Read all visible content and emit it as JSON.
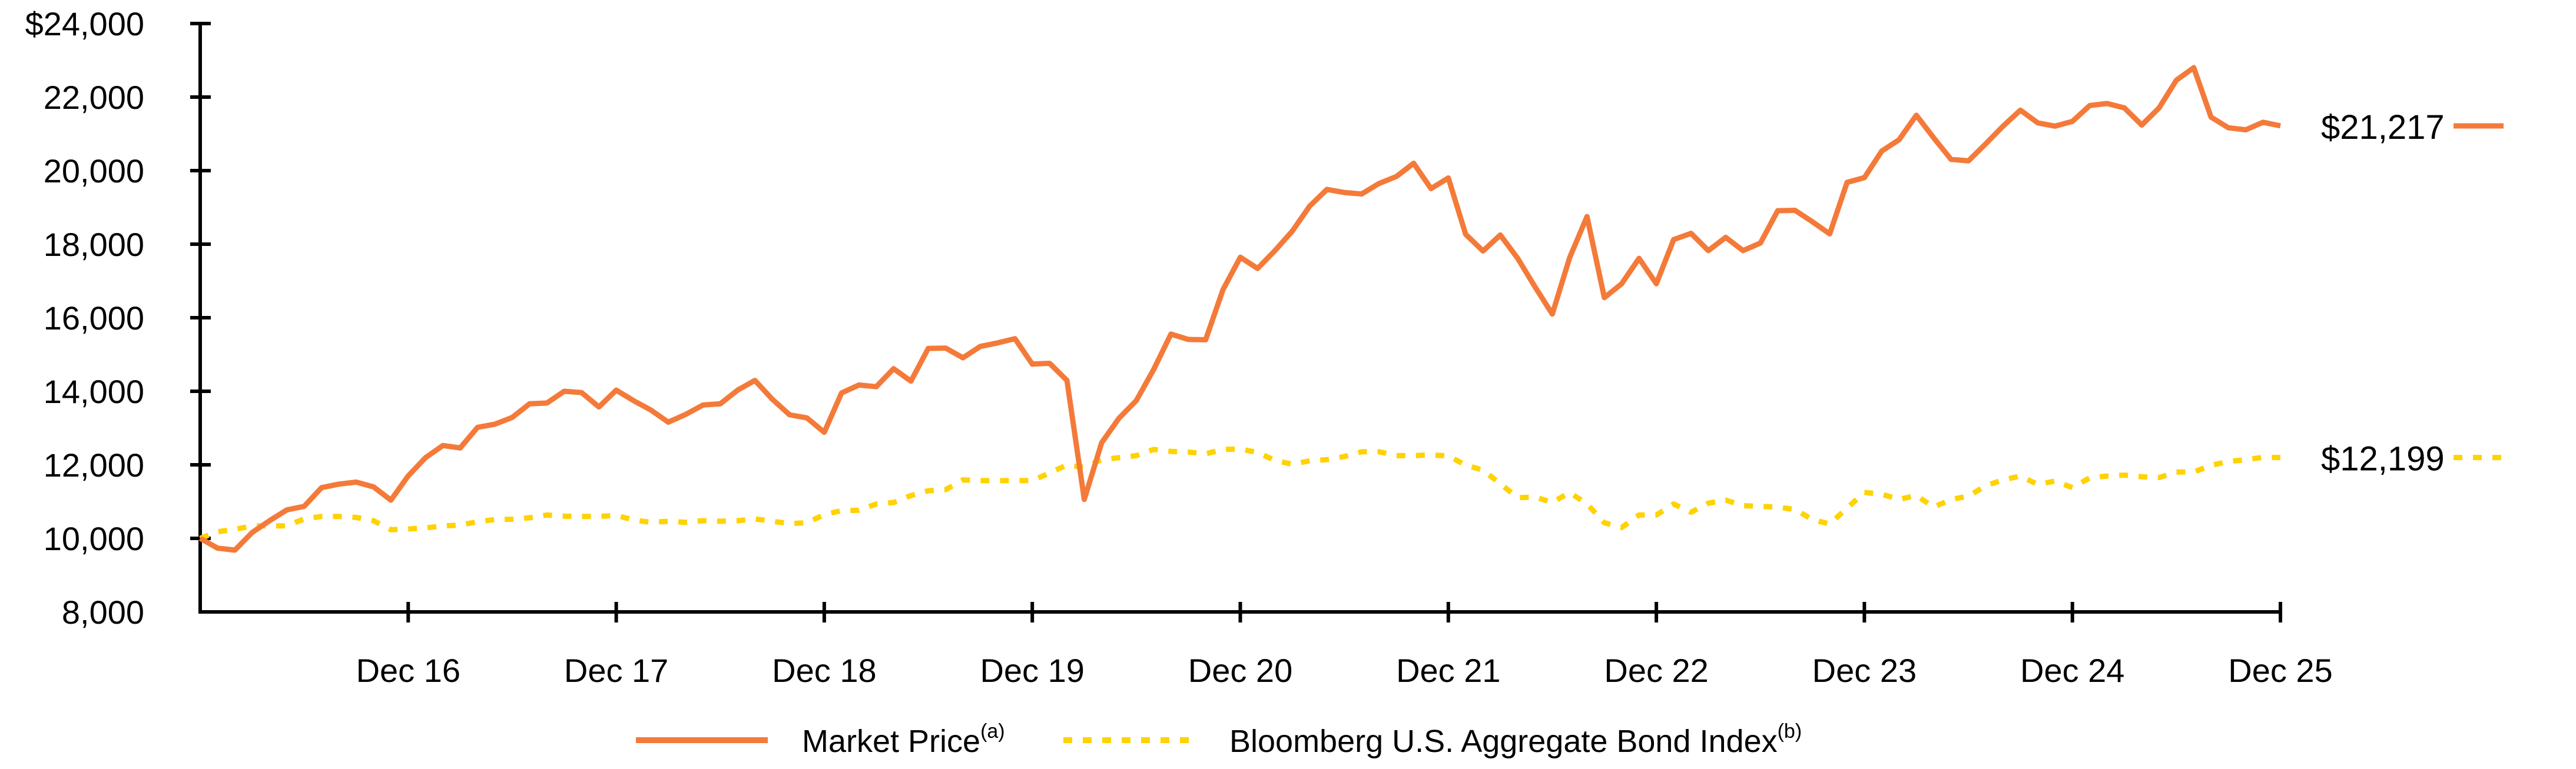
{
  "chart_data": {
    "type": "line",
    "title": "",
    "xlabel": "",
    "ylabel": "",
    "ylim": [
      8000,
      24000
    ],
    "y_ticks": [
      {
        "value": 24000,
        "label": "$24,000"
      },
      {
        "value": 22000,
        "label": "22,000"
      },
      {
        "value": 20000,
        "label": "20,000"
      },
      {
        "value": 18000,
        "label": "18,000"
      },
      {
        "value": 16000,
        "label": "16,000"
      },
      {
        "value": 14000,
        "label": "14,000"
      },
      {
        "value": 12000,
        "label": "12,000"
      },
      {
        "value": 10000,
        "label": "10,000"
      },
      {
        "value": 8000,
        "label": "8,000"
      }
    ],
    "x_range": [
      "Dec 15",
      "Dec 25"
    ],
    "x_frequency": "monthly",
    "x_ticks": [
      {
        "index": 12,
        "label": "Dec 16"
      },
      {
        "index": 24,
        "label": "Dec 17"
      },
      {
        "index": 36,
        "label": "Dec 18"
      },
      {
        "index": 48,
        "label": "Dec 19"
      },
      {
        "index": 60,
        "label": "Dec 20"
      },
      {
        "index": 72,
        "label": "Dec 21"
      },
      {
        "index": 84,
        "label": "Dec 22"
      },
      {
        "index": 96,
        "label": "Dec 23"
      },
      {
        "index": 108,
        "label": "Dec 24"
      },
      {
        "index": 120,
        "label": "Dec 25"
      }
    ],
    "grid": false,
    "legend_position": "bottom-center",
    "series": [
      {
        "name": "Market Price",
        "superscript": "(a)",
        "color": "#F47A3A",
        "style": "solid",
        "end_label": "$21,217",
        "values": [
          10000,
          9735,
          9680,
          10160,
          10480,
          10775,
          10870,
          11380,
          11475,
          11530,
          11400,
          11040,
          11700,
          12195,
          12525,
          12460,
          13020,
          13105,
          13290,
          13660,
          13680,
          14000,
          13965,
          13575,
          14030,
          13745,
          13490,
          13160,
          13370,
          13625,
          13660,
          14030,
          14295,
          13785,
          13360,
          13275,
          12885,
          13955,
          14170,
          14125,
          14615,
          14275,
          15165,
          15175,
          14910,
          15220,
          15315,
          15430,
          14740,
          14760,
          14295,
          11060,
          12600,
          13265,
          13745,
          14590,
          15555,
          15410,
          15400,
          16765,
          17645,
          17340,
          17825,
          18355,
          19035,
          19490,
          19405,
          19365,
          19650,
          19840,
          20200,
          19510,
          19800,
          18270,
          17815,
          18250,
          17615,
          16840,
          16100,
          17635,
          18750,
          16545,
          16925,
          17615,
          16925,
          18125,
          18295,
          17825,
          18185,
          17825,
          18030,
          18910,
          18920,
          18610,
          18280,
          19680,
          19810,
          20530,
          20840,
          21505,
          20890,
          20305,
          20265,
          20730,
          21210,
          21645,
          21300,
          21210,
          21340,
          21770,
          21825,
          21705,
          21240,
          21705,
          22460,
          22800,
          21455,
          21165,
          21110,
          21315,
          21217
        ]
      },
      {
        "name": "Bloomberg U.S. Aggregate Bond Index",
        "superscript": "(b)",
        "color": "#FFD200",
        "style": "dashed",
        "end_label": "$12,199",
        "values": [
          10000,
          10180,
          10245,
          10340,
          10340,
          10340,
          10530,
          10595,
          10595,
          10570,
          10480,
          10235,
          10255,
          10285,
          10340,
          10360,
          10455,
          10510,
          10520,
          10560,
          10635,
          10605,
          10595,
          10595,
          10625,
          10500,
          10435,
          10465,
          10435,
          10480,
          10465,
          10480,
          10530,
          10465,
          10400,
          10425,
          10645,
          10755,
          10765,
          10935,
          10975,
          11165,
          11295,
          11325,
          11590,
          11570,
          11570,
          11570,
          11570,
          11780,
          11995,
          11930,
          12140,
          12195,
          12250,
          12420,
          12365,
          12345,
          12300,
          12420,
          12430,
          12335,
          12120,
          12015,
          12110,
          12140,
          12225,
          12355,
          12355,
          12250,
          12250,
          12270,
          12240,
          11995,
          11855,
          11485,
          11105,
          11125,
          10975,
          11250,
          10935,
          10425,
          10295,
          10635,
          10635,
          10935,
          10710,
          10955,
          11040,
          10890,
          10870,
          10850,
          10785,
          10510,
          10390,
          10825,
          11250,
          11200,
          11060,
          11165,
          10850,
          11060,
          11145,
          11430,
          11590,
          11695,
          11465,
          11560,
          11380,
          11645,
          11695,
          11720,
          11675,
          11655,
          11805,
          11805,
          11985,
          12090,
          12140,
          12205,
          12199
        ]
      }
    ]
  },
  "legend": {
    "items": [
      {
        "label": "Market Price",
        "superscript": "(a)"
      },
      {
        "label": "Bloomberg U.S. Aggregate Bond Index",
        "superscript": "(b)"
      }
    ]
  }
}
